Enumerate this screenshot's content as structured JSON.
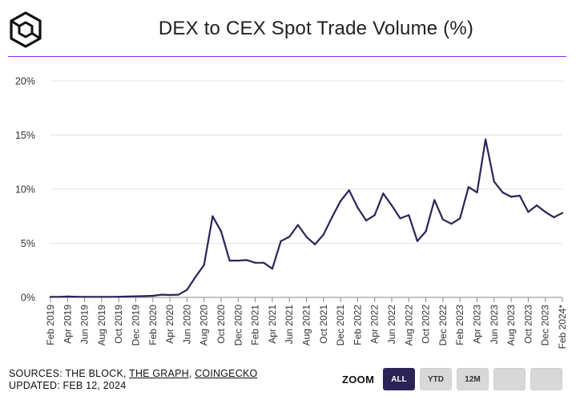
{
  "header": {
    "title": "DEX to CEX Spot Trade Volume (%)",
    "logo_icon": "the-block-cube-logo"
  },
  "colors": {
    "accent_rule": "#8b2be2",
    "line": "#2b2457",
    "active_button": "#2b2457",
    "inactive_button": "#d8d8d8"
  },
  "footer": {
    "sources_label": "SOURCES: THE BLOCK, ",
    "source_link_1": "THE GRAPH",
    "separator": ", ",
    "source_link_2": "COINGECKO",
    "updated": "UPDATED: FEB 12, 2024"
  },
  "zoom": {
    "label": "ZOOM",
    "buttons": [
      "ALL",
      "YTD",
      "12M",
      "",
      ""
    ],
    "active": "ALL"
  },
  "chart_data": {
    "type": "line",
    "x_tick_labels": [
      "Feb 2019",
      "Apr 2019",
      "Jun 2019",
      "Aug 2019",
      "Oct 2019",
      "Dec 2019",
      "Feb 2020",
      "Apr 2020",
      "Jun 2020",
      "Aug 2020",
      "Oct 2020",
      "Dec 2020",
      "Feb 2021",
      "Apr 2021",
      "Jun 2021",
      "Aug 2021",
      "Oct 2021",
      "Dec 2021",
      "Feb 2022",
      "Apr 2022",
      "Jun 2022",
      "Aug 2022",
      "Oct 2022",
      "Dec 2022",
      "Feb 2023",
      "Apr 2023",
      "Jun 2023",
      "Aug 2023",
      "Oct 2023",
      "Dec 2023",
      "Feb 2024*"
    ],
    "y_ticks": [
      0,
      5,
      10,
      15,
      20
    ],
    "y_tick_labels": [
      "0%",
      "5%",
      "10%",
      "15%",
      "20%"
    ],
    "ylim": [
      0,
      20
    ],
    "grid": "horizontal",
    "series": [
      {
        "x": [
          "Feb 2019",
          "Mar 2019",
          "Apr 2019",
          "May 2019",
          "Jun 2019",
          "Jul 2019",
          "Aug 2019",
          "Sep 2019",
          "Oct 2019",
          "Nov 2019",
          "Dec 2019",
          "Jan 2020",
          "Feb 2020",
          "Mar 2020",
          "Apr 2020",
          "May 2020",
          "Jun 2020",
          "Jul 2020",
          "Aug 2020",
          "Sep 2020",
          "Oct 2020",
          "Nov 2020",
          "Dec 2020",
          "Jan 2021",
          "Feb 2021",
          "Mar 2021",
          "Apr 2021",
          "May 2021",
          "Jun 2021",
          "Jul 2021",
          "Aug 2021",
          "Sep 2021",
          "Oct 2021",
          "Nov 2021",
          "Dec 2021",
          "Jan 2022",
          "Feb 2022",
          "Mar 2022",
          "Apr 2022",
          "May 2022",
          "Jun 2022",
          "Jul 2022",
          "Aug 2022",
          "Sep 2022",
          "Oct 2022",
          "Nov 2022",
          "Dec 2022",
          "Jan 2023",
          "Feb 2023",
          "Mar 2023",
          "Apr 2023",
          "May 2023",
          "Jun 2023",
          "Jul 2023",
          "Aug 2023",
          "Sep 2023",
          "Oct 2023",
          "Nov 2023",
          "Dec 2023",
          "Jan 2024",
          "Feb 2024*"
        ],
        "values": [
          0.05,
          0.05,
          0.08,
          0.06,
          0.05,
          0.05,
          0.05,
          0.05,
          0.06,
          0.08,
          0.1,
          0.12,
          0.15,
          0.25,
          0.22,
          0.25,
          0.7,
          1.9,
          3.0,
          7.5,
          6.1,
          3.4,
          3.4,
          3.45,
          3.2,
          3.2,
          2.65,
          5.2,
          5.6,
          6.7,
          5.6,
          4.9,
          5.8,
          7.4,
          8.9,
          9.9,
          8.3,
          7.1,
          7.6,
          9.6,
          8.5,
          7.3,
          7.6,
          5.2,
          6.1,
          9.0,
          7.2,
          6.8,
          7.3,
          10.2,
          9.7,
          14.6,
          10.7,
          9.7,
          9.3,
          9.4,
          7.9,
          8.5,
          7.9,
          7.4,
          7.8
        ]
      }
    ]
  }
}
